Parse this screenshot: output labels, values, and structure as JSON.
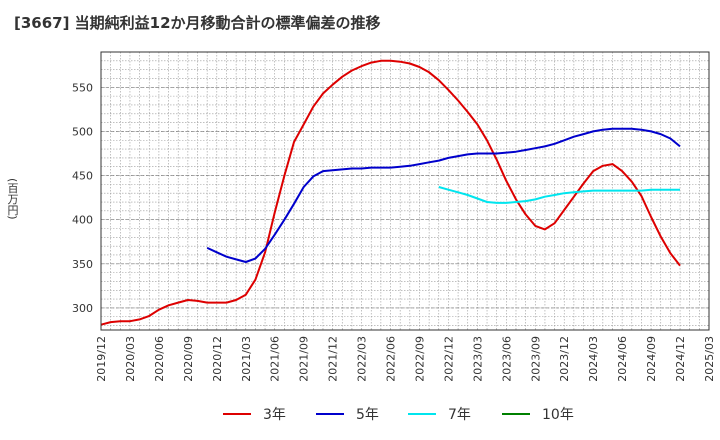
{
  "chart_data": {
    "type": "line",
    "title": "[3667]  当期純利益12か月移動合計の標準偏差の推移",
    "ylabel": "(百万円)",
    "xlabel": "",
    "ylim": [
      275,
      590
    ],
    "yticks": [
      300,
      350,
      400,
      450,
      500,
      550
    ],
    "x_range": [
      "2019/12",
      "2025/03"
    ],
    "x_ticks": [
      "2019/12",
      "2020/03",
      "2020/06",
      "2020/09",
      "2020/12",
      "2021/03",
      "2021/06",
      "2021/09",
      "2021/12",
      "2022/03",
      "2022/06",
      "2022/09",
      "2022/12",
      "2023/03",
      "2023/06",
      "2023/09",
      "2023/12",
      "2024/03",
      "2024/06",
      "2024/09",
      "2024/12",
      "2025/03"
    ],
    "grid": true,
    "legend_position": "bottom",
    "series": [
      {
        "name": "3年",
        "color": "#dd0000",
        "x": [
          "2019/12",
          "2020/01",
          "2020/02",
          "2020/03",
          "2020/04",
          "2020/05",
          "2020/06",
          "2020/07",
          "2020/08",
          "2020/09",
          "2020/10",
          "2020/11",
          "2020/12",
          "2021/01",
          "2021/02",
          "2021/03",
          "2021/04",
          "2021/05",
          "2021/06",
          "2021/07",
          "2021/08",
          "2021/09",
          "2021/10",
          "2021/11",
          "2021/12",
          "2022/01",
          "2022/02",
          "2022/03",
          "2022/04",
          "2022/05",
          "2022/06",
          "2022/07",
          "2022/08",
          "2022/09",
          "2022/10",
          "2022/11",
          "2022/12",
          "2023/01",
          "2023/02",
          "2023/03",
          "2023/04",
          "2023/05",
          "2023/06",
          "2023/07",
          "2023/08",
          "2023/09",
          "2023/10",
          "2023/11",
          "2023/12",
          "2024/01",
          "2024/02",
          "2024/03",
          "2024/04",
          "2024/05",
          "2024/06",
          "2024/07",
          "2024/08",
          "2024/09",
          "2024/10",
          "2024/11",
          "2024/12"
        ],
        "values": [
          281,
          284,
          285,
          285,
          287,
          291,
          298,
          303,
          306,
          309,
          308,
          306,
          306,
          306,
          309,
          315,
          332,
          363,
          408,
          450,
          488,
          508,
          528,
          543,
          553,
          562,
          569,
          574,
          578,
          580,
          580,
          579,
          577,
          573,
          567,
          558,
          547,
          535,
          522,
          508,
          490,
          468,
          444,
          423,
          406,
          393,
          389,
          396,
          411,
          426,
          441,
          455,
          461,
          463,
          455,
          443,
          427,
          403,
          381,
          362,
          348
        ]
      },
      {
        "name": "5年",
        "color": "#0000cc",
        "x": [
          "2020/11",
          "2020/12",
          "2021/01",
          "2021/02",
          "2021/03",
          "2021/04",
          "2021/05",
          "2021/06",
          "2021/07",
          "2021/08",
          "2021/09",
          "2021/10",
          "2021/11",
          "2021/12",
          "2022/01",
          "2022/02",
          "2022/03",
          "2022/04",
          "2022/05",
          "2022/06",
          "2022/07",
          "2022/08",
          "2022/09",
          "2022/10",
          "2022/11",
          "2022/12",
          "2023/01",
          "2023/02",
          "2023/03",
          "2023/04",
          "2023/05",
          "2023/06",
          "2023/07",
          "2023/08",
          "2023/09",
          "2023/10",
          "2023/11",
          "2023/12",
          "2024/01",
          "2024/02",
          "2024/03",
          "2024/04",
          "2024/05",
          "2024/06",
          "2024/07",
          "2024/08",
          "2024/09",
          "2024/10",
          "2024/11",
          "2024/12"
        ],
        "values": [
          368,
          363,
          358,
          355,
          352,
          356,
          367,
          383,
          400,
          418,
          437,
          449,
          455,
          456,
          457,
          458,
          458,
          459,
          459,
          459,
          460,
          461,
          463,
          465,
          467,
          470,
          472,
          474,
          475,
          475,
          475,
          476,
          477,
          479,
          481,
          483,
          486,
          490,
          494,
          497,
          500,
          502,
          503,
          503,
          503,
          502,
          500,
          497,
          492,
          483
        ]
      },
      {
        "name": "7年",
        "color": "#00e5ee",
        "x": [
          "2022/11",
          "2022/12",
          "2023/01",
          "2023/02",
          "2023/03",
          "2023/04",
          "2023/05",
          "2023/06",
          "2023/07",
          "2023/08",
          "2023/09",
          "2023/10",
          "2023/11",
          "2023/12",
          "2024/01",
          "2024/02",
          "2024/03",
          "2024/04",
          "2024/05",
          "2024/06",
          "2024/07",
          "2024/08",
          "2024/09",
          "2024/10",
          "2024/11",
          "2024/12"
        ],
        "values": [
          437,
          434,
          431,
          428,
          424,
          420,
          419,
          419,
          420,
          421,
          423,
          426,
          428,
          430,
          431,
          432,
          433,
          433,
          433,
          433,
          433,
          433,
          434,
          434,
          434,
          434
        ]
      },
      {
        "name": "10年",
        "color": "#008000",
        "x": [],
        "values": []
      }
    ]
  }
}
